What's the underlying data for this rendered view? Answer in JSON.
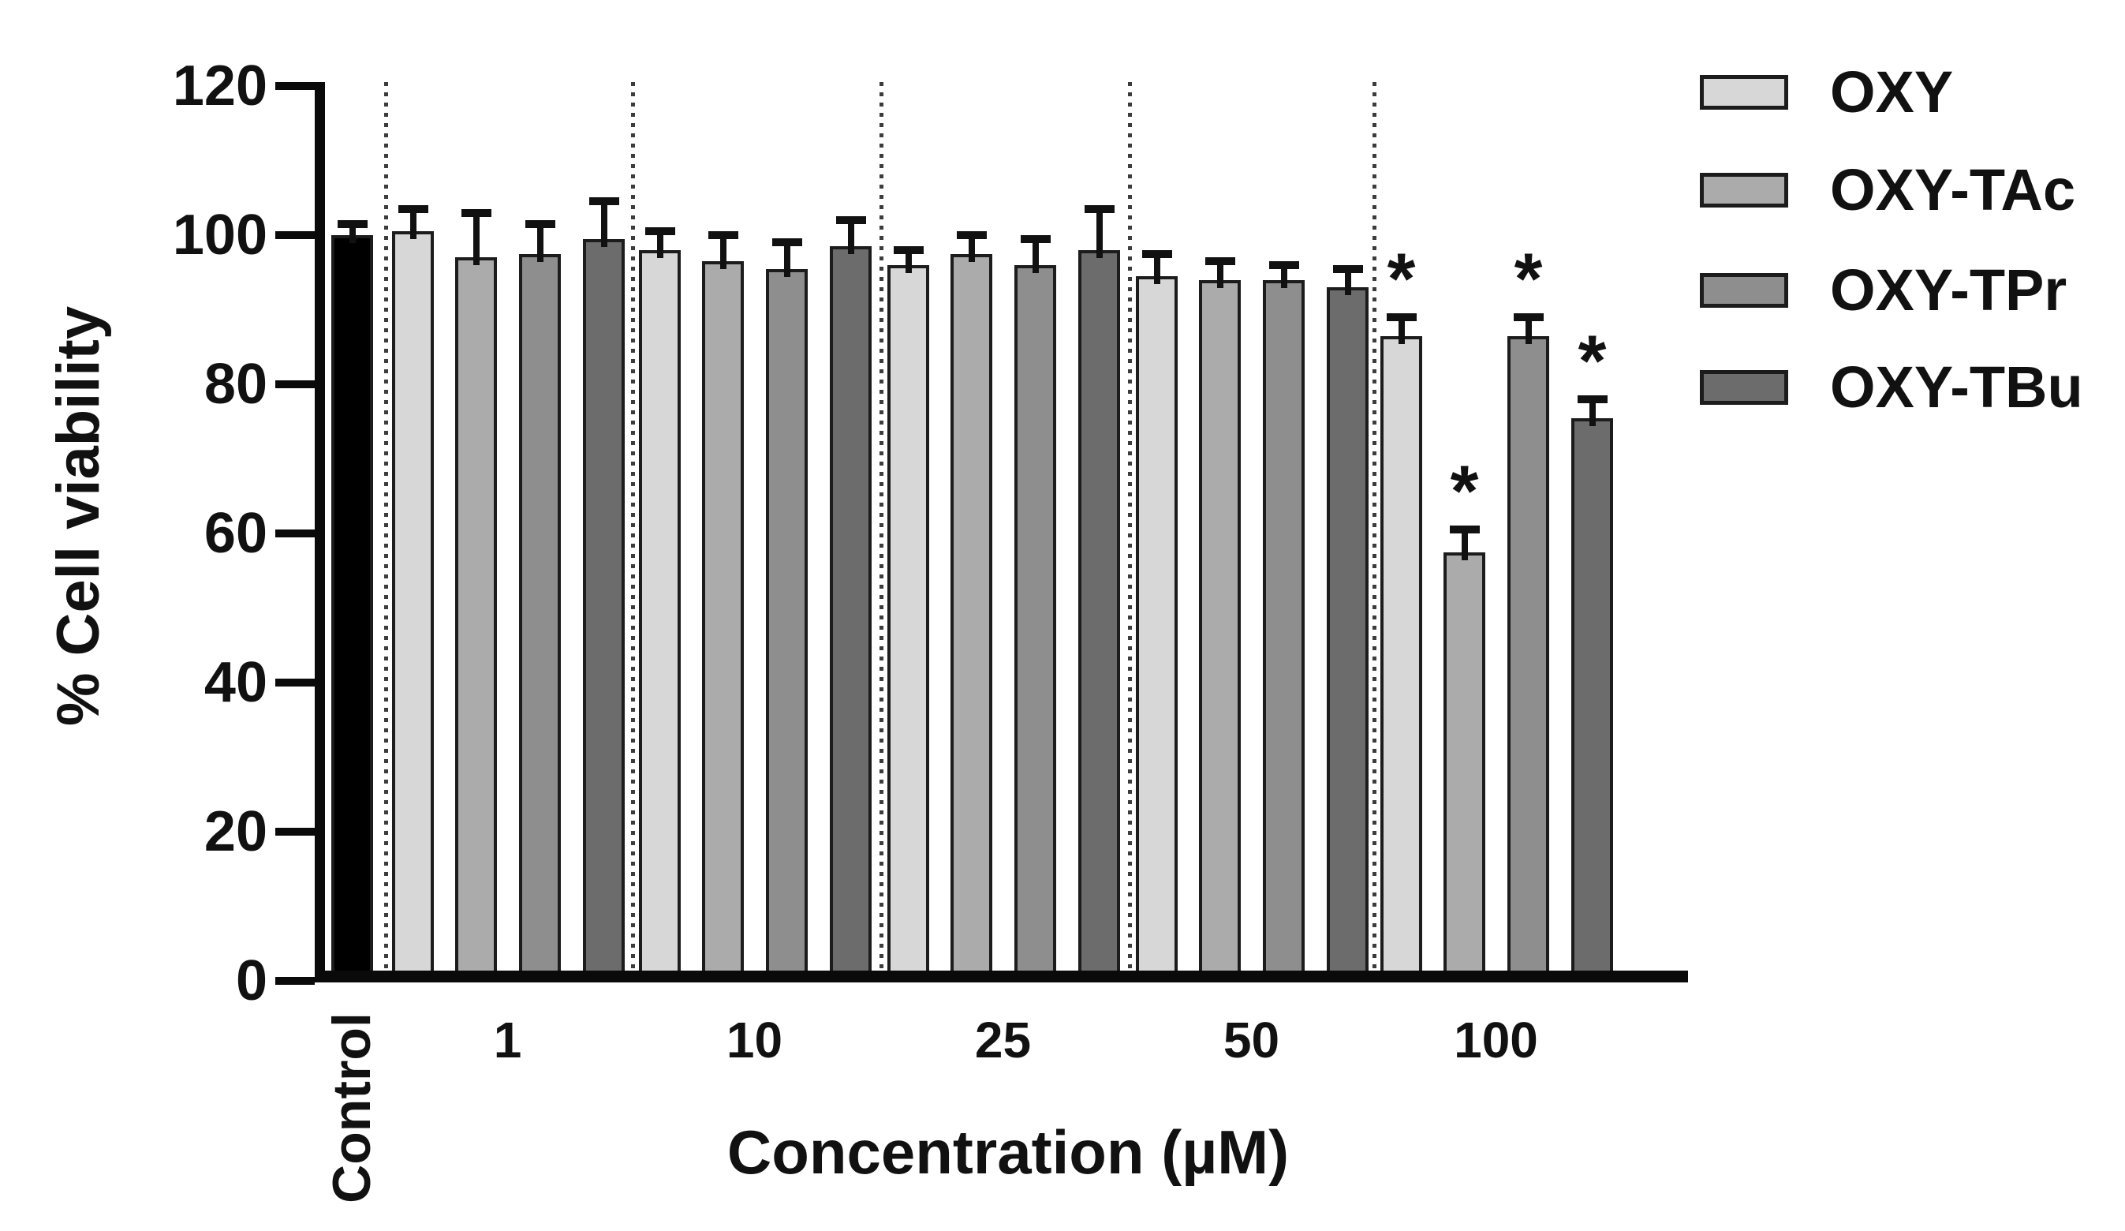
{
  "chart_data": {
    "type": "bar",
    "title": "",
    "ylabel": "% Cell viability",
    "xlabel": "Concentration (µM)",
    "ylim": [
      0,
      120
    ],
    "y_ticks": [
      0,
      20,
      40,
      60,
      80,
      100,
      120
    ],
    "categories": [
      "1",
      "10",
      "25",
      "50",
      "100"
    ],
    "control": {
      "label": "Control",
      "value": 100,
      "error": 1.5,
      "color": "#000000"
    },
    "series": [
      {
        "name": "OXY",
        "color": "#d7d7d7",
        "values": [
          100.5,
          98,
          96,
          94.5,
          86.5
        ],
        "errors": [
          3,
          2.5,
          2,
          3,
          2.5
        ],
        "significant": [
          false,
          false,
          false,
          false,
          true
        ]
      },
      {
        "name": "OXY-TAc",
        "color": "#ababab",
        "values": [
          97,
          96.5,
          97.5,
          94,
          57.5
        ],
        "errors": [
          6,
          3.5,
          2.5,
          2.5,
          3
        ],
        "significant": [
          false,
          false,
          false,
          false,
          true
        ]
      },
      {
        "name": "OXY-TPr",
        "color": "#8e8e8e",
        "values": [
          97.5,
          95.5,
          96,
          94,
          86.5
        ],
        "errors": [
          4,
          3.5,
          3.5,
          2,
          2.5
        ],
        "significant": [
          false,
          false,
          false,
          false,
          true
        ]
      },
      {
        "name": "OXY-TBu",
        "color": "#6c6c6c",
        "values": [
          99.5,
          98.5,
          98,
          93,
          75.5
        ],
        "errors": [
          5,
          3.5,
          5.5,
          2.5,
          2.5
        ],
        "significant": [
          false,
          false,
          false,
          false,
          true
        ]
      }
    ],
    "significance_marker": "*",
    "legend_position": "right-top",
    "grid": false,
    "group_separator_style": "dotted-vertical-lines",
    "bar_border_color": "#1c1c1c",
    "error_bar_color": "#111111",
    "axis_color": "#0a0a0a"
  }
}
